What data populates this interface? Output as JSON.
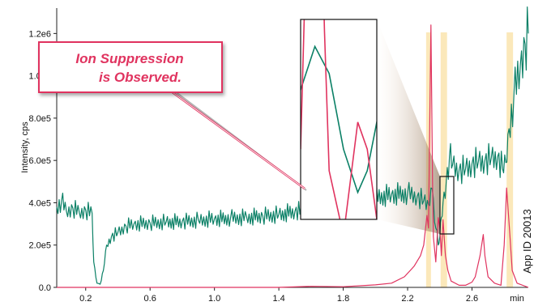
{
  "chart_data": {
    "type": "line",
    "xlabel": "min",
    "ylabel": "Intensity, cps",
    "x_ticks": [
      "0.2",
      "0.6",
      "1.0",
      "1.4",
      "1.8",
      "2.2",
      "2.6"
    ],
    "y_ticks": [
      "0.0",
      "2.0e5",
      "4.0e5",
      "6.0e5",
      "8.0e5",
      "1.0e6",
      "1.2e6"
    ],
    "xlim": [
      0.02,
      2.95
    ],
    "ylim": [
      0,
      1320000.0
    ],
    "grid": false,
    "annotation": {
      "line1": "Ion Suppression",
      "line2": "is Observed."
    },
    "watermark": "App ID 20013",
    "highlight_bands": [
      {
        "start": 2.315,
        "end": 2.345
      },
      {
        "start": 2.405,
        "end": 2.445
      },
      {
        "start": 2.815,
        "end": 2.855
      }
    ],
    "inset_x_range": [
      2.33,
      2.41
    ],
    "series": [
      {
        "color": "#0b8066",
        "values": [
          [
            0.02,
            380000
          ],
          [
            0.05,
            410000
          ],
          [
            0.08,
            360000
          ],
          [
            0.12,
            375000
          ],
          [
            0.16,
            355000
          ],
          [
            0.2,
            365000
          ],
          [
            0.24,
            350000
          ],
          [
            0.25,
            120000
          ],
          [
            0.27,
            20000
          ],
          [
            0.29,
            15000
          ],
          [
            0.31,
            80000
          ],
          [
            0.33,
            200000
          ],
          [
            0.36,
            240000
          ],
          [
            0.4,
            260000
          ],
          [
            0.45,
            290000
          ],
          [
            0.5,
            300000
          ],
          [
            0.6,
            305000
          ],
          [
            0.7,
            310000
          ],
          [
            0.8,
            312000
          ],
          [
            0.9,
            318000
          ],
          [
            1.0,
            325000
          ],
          [
            1.1,
            328000
          ],
          [
            1.2,
            332000
          ],
          [
            1.3,
            338000
          ],
          [
            1.4,
            345000
          ],
          [
            1.5,
            360000
          ],
          [
            1.6,
            372000
          ],
          [
            1.7,
            385000
          ],
          [
            1.8,
            400000
          ],
          [
            1.9,
            410000
          ],
          [
            2.0,
            425000
          ],
          [
            2.1,
            440000
          ],
          [
            2.2,
            445000
          ],
          [
            2.26,
            430000
          ],
          [
            2.3,
            410000
          ],
          [
            2.33,
            390000
          ],
          [
            2.345,
            470000
          ],
          [
            2.36,
            420000
          ],
          [
            2.375,
            280000
          ],
          [
            2.39,
            200000
          ],
          [
            2.4,
            240000
          ],
          [
            2.41,
            330000
          ],
          [
            2.42,
            400000
          ],
          [
            2.44,
            500000
          ],
          [
            2.46,
            620000
          ],
          [
            2.48,
            580000
          ],
          [
            2.52,
            555000
          ],
          [
            2.56,
            560000
          ],
          [
            2.6,
            585000
          ],
          [
            2.64,
            595000
          ],
          [
            2.68,
            600000
          ],
          [
            2.72,
            612000
          ],
          [
            2.76,
            620000
          ],
          [
            2.79,
            560000
          ],
          [
            2.81,
            590000
          ],
          [
            2.83,
            750000
          ],
          [
            2.86,
            900000
          ],
          [
            2.9,
            1050000
          ],
          [
            2.93,
            1150000
          ],
          [
            2.95,
            1200000
          ]
        ]
      },
      {
        "color": "#e0335f",
        "values": [
          [
            0.02,
            0
          ],
          [
            1.4,
            0
          ],
          [
            1.6,
            5000
          ],
          [
            1.8,
            3000
          ],
          [
            2.0,
            12000
          ],
          [
            2.1,
            20000
          ],
          [
            2.18,
            50000
          ],
          [
            2.24,
            100000
          ],
          [
            2.28,
            150000
          ],
          [
            2.3,
            200000
          ],
          [
            2.32,
            340000
          ],
          [
            2.33,
            280000
          ],
          [
            2.345,
            1240000
          ],
          [
            2.355,
            500000
          ],
          [
            2.36,
            240000
          ],
          [
            2.375,
            120000
          ],
          [
            2.39,
            330000
          ],
          [
            2.4,
            280000
          ],
          [
            2.41,
            150000
          ],
          [
            2.42,
            320000
          ],
          [
            2.435,
            150000
          ],
          [
            2.45,
            80000
          ],
          [
            2.47,
            30000
          ],
          [
            2.52,
            10000
          ],
          [
            2.56,
            10000
          ],
          [
            2.6,
            25000
          ],
          [
            2.62,
            50000
          ],
          [
            2.65,
            150000
          ],
          [
            2.67,
            250000
          ],
          [
            2.68,
            150000
          ],
          [
            2.7,
            50000
          ],
          [
            2.74,
            20000
          ],
          [
            2.78,
            10000
          ],
          [
            2.8,
            200000
          ],
          [
            2.815,
            470000
          ],
          [
            2.835,
            250000
          ],
          [
            2.85,
            80000
          ],
          [
            2.88,
            20000
          ],
          [
            2.95,
            0
          ]
        ]
      }
    ]
  }
}
